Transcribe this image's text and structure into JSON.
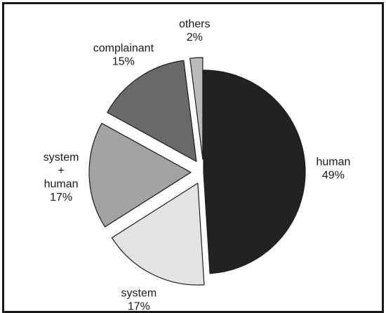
{
  "chart_data": {
    "type": "pie",
    "title": "",
    "start_angle_deg": 0,
    "direction": "clockwise",
    "slices": [
      {
        "label_lines": [
          "human",
          "49%"
        ],
        "value": 49,
        "color": "#222222",
        "explode": 0
      },
      {
        "label_lines": [
          "system",
          "17%"
        ],
        "value": 17,
        "color": "#e2e3e5",
        "explode": 1
      },
      {
        "label_lines": [
          "system",
          "+",
          "human",
          "17%"
        ],
        "value": 17,
        "color": "#a2a3a5",
        "explode": 1
      },
      {
        "label_lines": [
          "complainant",
          "15%"
        ],
        "value": 15,
        "color": "#696969",
        "explode": 1
      },
      {
        "label_lines": [
          "others",
          "2%"
        ],
        "value": 2,
        "color": "#b9babc",
        "explode": 1
      }
    ]
  }
}
